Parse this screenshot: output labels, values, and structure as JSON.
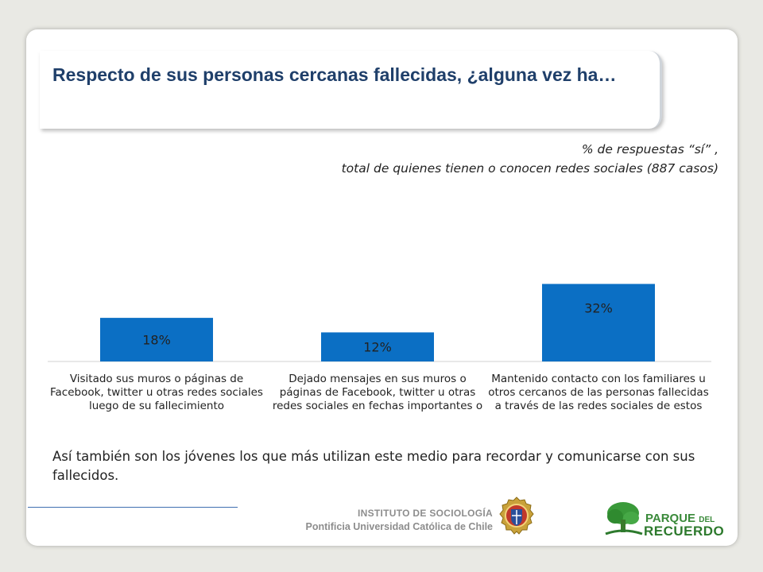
{
  "header": {
    "title": "Respecto de sus personas cercanas fallecidas, ¿alguna vez ha…",
    "subtitle_line1": "% de respuestas “sí” ,",
    "subtitle_line2": "total de quienes tienen o conocen redes sociales (887 casos)"
  },
  "chart_data": {
    "type": "bar",
    "categories": [
      "Visitado sus muros o páginas de Facebook, twitter u otras redes sociales luego de su fallecimiento",
      "Dejado mensajes en sus muros o páginas de  Facebook, twitter u otras redes sociales en fechas importantes o",
      "Mantenido contacto con los familiares u otros cercanos de las personas fallecidas a través de las redes sociales de estos"
    ],
    "values": [
      18,
      12,
      32
    ],
    "data_labels": [
      "18%",
      "12%",
      "32%"
    ],
    "bar_color": "#0b6fc4",
    "ylim": [
      0,
      40
    ]
  },
  "footer": {
    "note": "Así también son los jóvenes los que más utilizan este medio para recordar y comunicarse con sus fallecidos.",
    "institute": "INSTITUTO DE SOCIOLOGÍA",
    "university": "Pontificia Universidad Católica de Chile",
    "logo_word1": "PARQUE",
    "logo_word1_small": "DEL",
    "logo_word2": "RECUERDO"
  }
}
